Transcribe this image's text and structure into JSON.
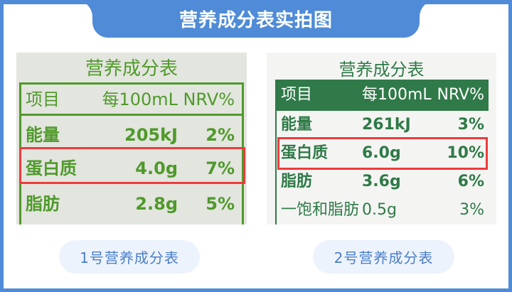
{
  "title": "营养成分表实拍图",
  "labels": [
    {
      "heading": "营养成分表",
      "columns": [
        "项目",
        "每100mL",
        "NRV%"
      ],
      "rows": [
        {
          "item": "能量",
          "amount": "205kJ",
          "nrv": "2%"
        },
        {
          "item": "蛋白质",
          "amount": "4.0g",
          "nrv": "7%",
          "highlighted": true
        },
        {
          "item": "脂肪",
          "amount": "2.8g",
          "nrv": "5%"
        }
      ],
      "caption": "1号营养成分表"
    },
    {
      "heading": "营养成分表",
      "columns": [
        "项目",
        "每100mL",
        "NRV%"
      ],
      "rows": [
        {
          "item": "能量",
          "amount": "261kJ",
          "nrv": "3%"
        },
        {
          "item": "蛋白质",
          "amount": "6.0g",
          "nrv": "10%",
          "highlighted": true
        },
        {
          "item": "脂肪",
          "amount": "3.6g",
          "nrv": "6%"
        },
        {
          "item": "一饱和脂肪",
          "amount": "0.5g",
          "nrv": "3%"
        }
      ],
      "caption": "2号营养成分表"
    }
  ],
  "colors": {
    "frame": "#4f8bd6",
    "highlight": "#ef3b3b",
    "label1_green": "#4f9a2a",
    "label2_green": "#2f7a48"
  }
}
